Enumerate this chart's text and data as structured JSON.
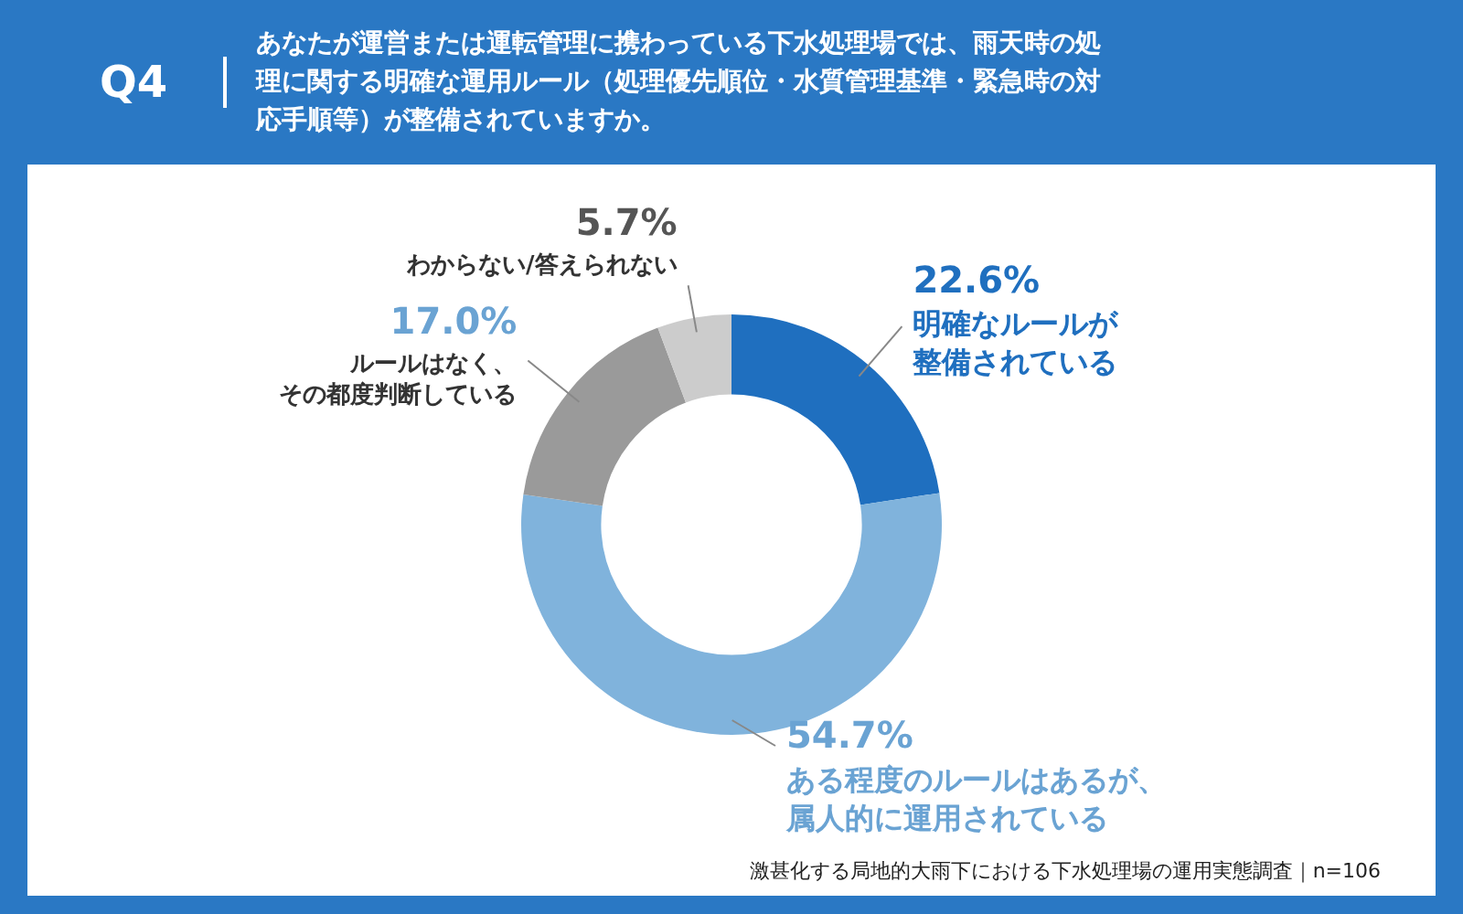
{
  "chart_data": {
    "type": "donut",
    "subtitle": "Q4",
    "title": "あなたが運営または運転管理に携わっている下水処理場では、雨天時の処理に関する明確な運用ルール（処理優先順位・水質管理基準・緊急時の対応手順等）が整備されていますか。",
    "categories": [
      "明確なルールが整備されている",
      "ある程度のルールはあるが、属人的に運用されている",
      "ルールはなく、その都度判断している",
      "わからない/答えられない"
    ],
    "values": [
      22.6,
      54.7,
      17.0,
      5.7
    ],
    "value_labels": [
      "22.6%",
      "54.7%",
      "17.0%",
      "5.7%"
    ],
    "colors": [
      "#1f6fbf",
      "#80b3dc",
      "#9a9a9a",
      "#cccccc"
    ],
    "legend": false,
    "annotations": [
      "激甚化する局地的大雨下における下水処理場の運用実態調査｜n=106"
    ]
  }
}
